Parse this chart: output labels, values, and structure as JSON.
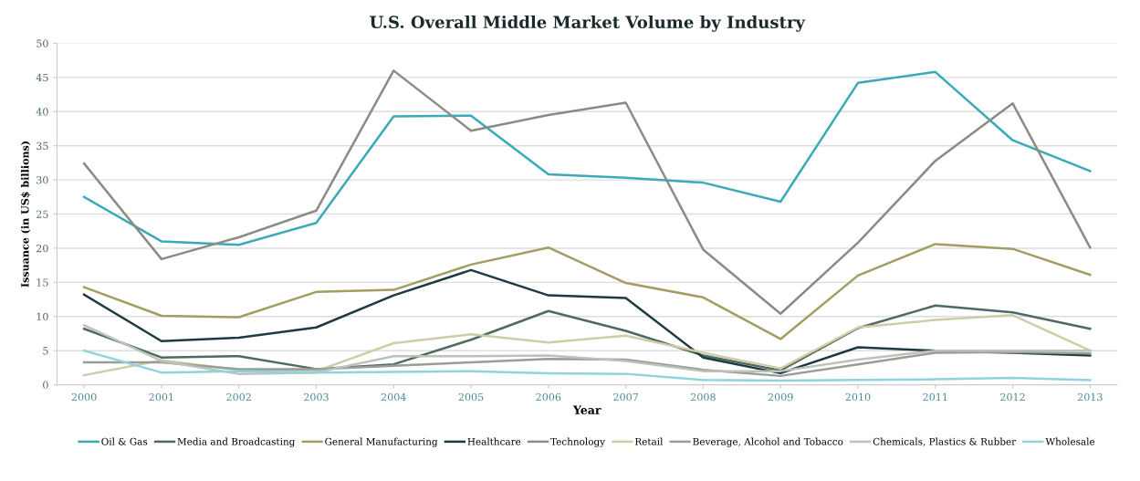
{
  "chart_data": {
    "type": "line",
    "title": "U.S. Overall Middle Market Volume by Industry",
    "xlabel": "Year",
    "ylabel": "Issuance (in US$ billions)",
    "categories": [
      "2000",
      "2001",
      "2002",
      "2003",
      "2004",
      "2005",
      "2006",
      "2007",
      "2008",
      "2009",
      "2010",
      "2011",
      "2012",
      "2013"
    ],
    "ylim": [
      0,
      50
    ],
    "yticks": [
      0,
      5,
      10,
      15,
      20,
      25,
      30,
      35,
      40,
      45,
      50
    ],
    "grid": "y",
    "legend": "bottom",
    "marker": "none",
    "line_style": "solid",
    "series": [
      {
        "name": "Oil & Gas",
        "color": "#3aa9b8",
        "values": [
          27.5,
          21,
          20.5,
          23.7,
          39.3,
          39.4,
          30.8,
          30.3,
          29.6,
          26.8,
          44.2,
          45.8,
          35.8,
          31.3
        ]
      },
      {
        "name": "Media and Broadcasting",
        "color": "#4f6a5e",
        "values": [
          8.2,
          4,
          4.2,
          2.3,
          3,
          6.6,
          10.8,
          7.9,
          4.3,
          2.1,
          8.3,
          11.6,
          10.6,
          8.2
        ]
      },
      {
        "name": "General Manufacturing",
        "color": "#a39d62",
        "values": [
          14.3,
          10.1,
          9.9,
          13.6,
          13.9,
          17.6,
          20.1,
          14.9,
          12.8,
          6.7,
          16,
          20.6,
          19.9,
          16.1
        ]
      },
      {
        "name": "Healthcare",
        "color": "#1d3a42",
        "values": [
          13.2,
          6.4,
          6.9,
          8.4,
          13.1,
          16.8,
          13.1,
          12.7,
          4,
          1.7,
          5.5,
          5,
          4.7,
          4.3
        ]
      },
      {
        "name": "Technology",
        "color": "#8a8c84",
        "values": [
          32.4,
          18.4,
          21.6,
          25.5,
          46,
          37.2,
          39.5,
          41.3,
          19.8,
          10.4,
          20.8,
          32.8,
          41.2,
          20.1
        ]
      },
      {
        "name": "Retail",
        "color": "#cfcca8",
        "values": [
          1.4,
          3.6,
          2.2,
          2,
          6.1,
          7.4,
          6.2,
          7.2,
          4.7,
          2.4,
          8.4,
          9.5,
          10.2,
          5
        ]
      },
      {
        "name": "Beverage, Alcohol and Tobacco",
        "color": "#9a9c96",
        "values": [
          3.3,
          3.3,
          2.3,
          2.3,
          2.8,
          3.3,
          3.8,
          3.7,
          2.2,
          1.3,
          3,
          4.7,
          4.8,
          4.6
        ]
      },
      {
        "name": "Chemicals, Plastics & Rubber",
        "color": "#bcc2b8",
        "values": [
          8.7,
          3.5,
          1.6,
          1.8,
          4.2,
          4.2,
          4.3,
          3.5,
          2,
          2,
          3.7,
          5,
          5,
          5
        ]
      },
      {
        "name": "Wholesale",
        "color": "#8fd3dc",
        "values": [
          5,
          1.8,
          2,
          1.8,
          1.9,
          2,
          1.7,
          1.6,
          0.7,
          0.6,
          0.7,
          0.8,
          1,
          0.7
        ]
      }
    ]
  }
}
